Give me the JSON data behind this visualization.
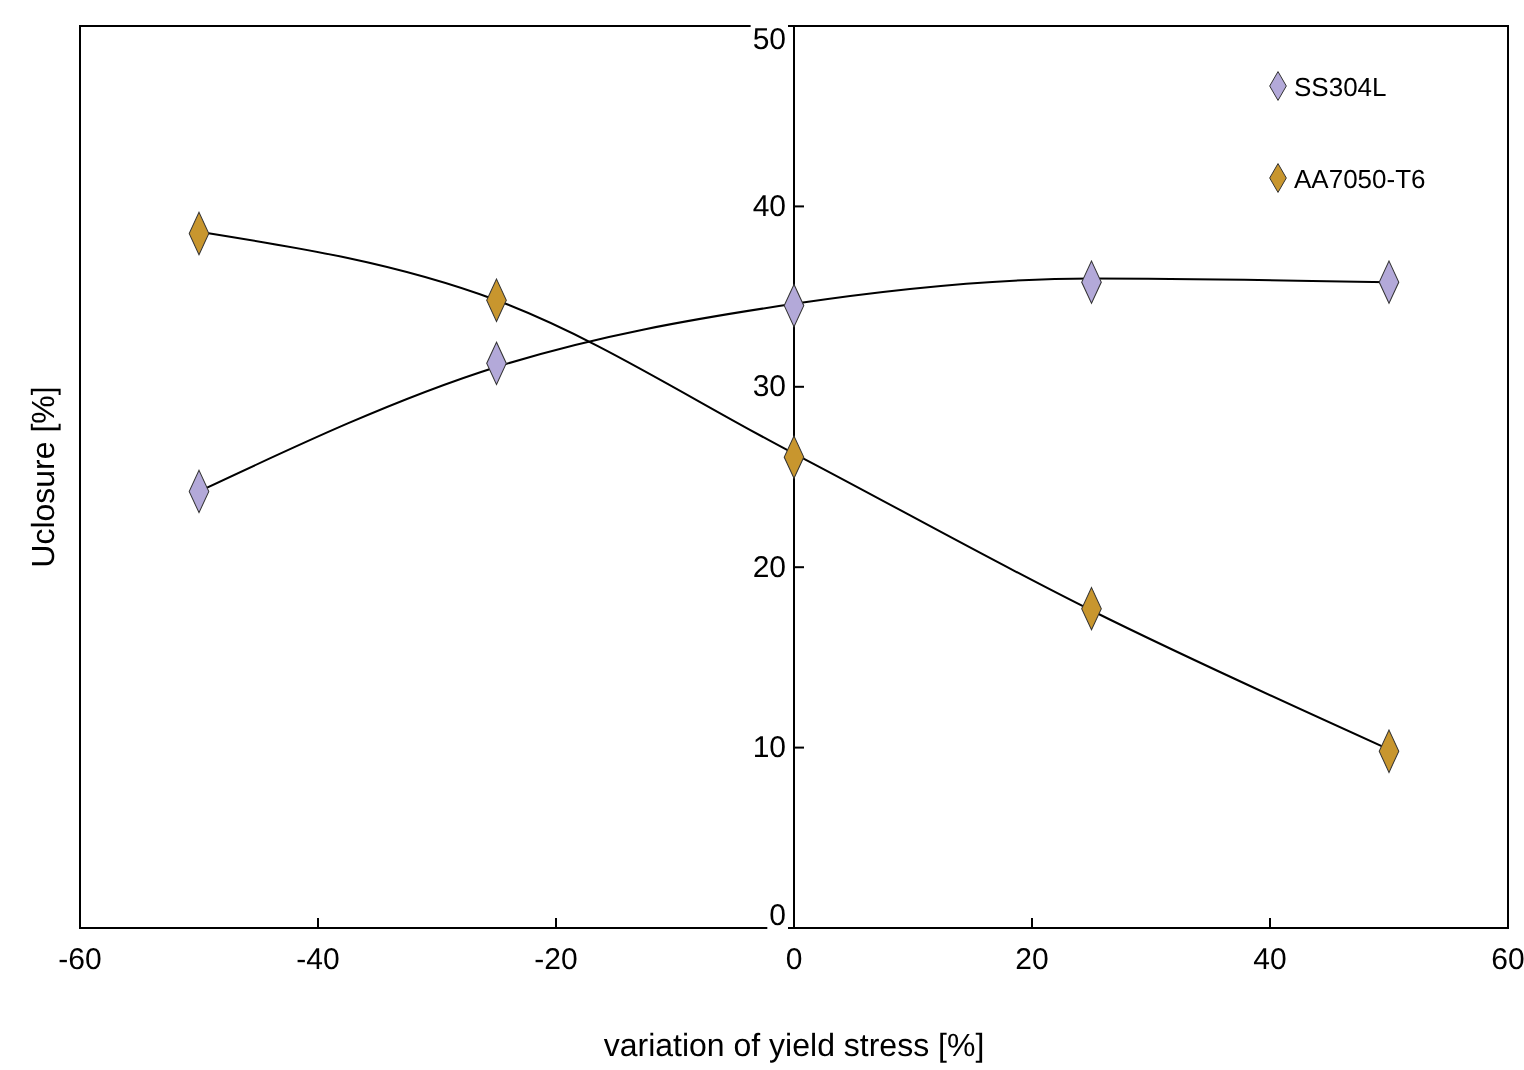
{
  "chart_data": {
    "type": "scatter",
    "xlabel": "variation of yield stress [%]",
    "ylabel": "Uclosure [%]",
    "xlim": [
      -60,
      60
    ],
    "xticks": [
      -60,
      -40,
      -20,
      0,
      20,
      40,
      60
    ],
    "ylim": [
      0,
      50
    ],
    "yticks": [
      0,
      10,
      20,
      30,
      40,
      50
    ],
    "grid": false,
    "legend": "top right",
    "marker": "diamond",
    "series": [
      {
        "type": "line",
        "marker": "none",
        "color": "#000000",
        "x": [
          -50,
          -25,
          0,
          25,
          50
        ],
        "values": [
          24.2,
          31.1,
          34.6,
          36.0,
          35.8
        ]
      },
      {
        "type": "line",
        "marker": "none",
        "color": "#000000",
        "x": [
          -50,
          -25,
          0,
          25,
          50
        ],
        "values": [
          38.6,
          34.8,
          26.3,
          17.6,
          9.9
        ]
      },
      {
        "name": "SS304L",
        "color": "#b3a9d9",
        "x": [
          -50,
          -25,
          0,
          25,
          50
        ],
        "values": [
          24.2,
          31.3,
          34.5,
          35.8,
          35.8
        ]
      },
      {
        "name": "AA7050-T6",
        "color": "#c8962e",
        "x": [
          -50,
          -25,
          0,
          25,
          50
        ],
        "values": [
          38.5,
          34.8,
          26.1,
          17.7,
          9.8
        ]
      }
    ]
  }
}
